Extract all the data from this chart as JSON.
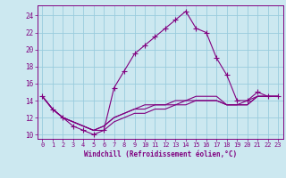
{
  "xlabel": "Windchill (Refroidissement éolien,°C)",
  "background_color": "#cce8f0",
  "grid_color": "#99ccdd",
  "line_color": "#800080",
  "x_ticks": [
    0,
    1,
    2,
    3,
    4,
    5,
    6,
    7,
    8,
    9,
    10,
    11,
    12,
    13,
    14,
    15,
    16,
    17,
    18,
    19,
    20,
    21,
    22,
    23
  ],
  "y_ticks": [
    10,
    12,
    14,
    16,
    18,
    20,
    22,
    24
  ],
  "xlim": [
    -0.5,
    23.5
  ],
  "ylim": [
    9.5,
    25.2
  ],
  "series": [
    {
      "x": [
        0,
        1,
        2,
        3,
        4,
        5,
        6,
        7,
        8,
        9,
        10,
        11,
        12,
        13,
        14,
        15,
        16,
        17,
        18,
        19,
        20,
        21,
        22,
        23
      ],
      "y": [
        14.5,
        13.0,
        12.0,
        11.0,
        10.5,
        10.0,
        10.5,
        15.5,
        17.5,
        19.5,
        20.5,
        21.5,
        22.5,
        23.5,
        24.5,
        22.5,
        22.0,
        19.0,
        17.0,
        14.0,
        14.0,
        15.0,
        14.5,
        14.5
      ],
      "marker": "+"
    },
    {
      "x": [
        0,
        1,
        2,
        3,
        4,
        5,
        6,
        7,
        8,
        9,
        10,
        11,
        12,
        13,
        14,
        15,
        16,
        17,
        18,
        19,
        20,
        21,
        22,
        23
      ],
      "y": [
        14.5,
        13.0,
        12.0,
        11.5,
        11.0,
        10.5,
        11.0,
        12.0,
        12.5,
        13.0,
        13.5,
        13.5,
        13.5,
        14.0,
        14.0,
        14.5,
        14.5,
        14.5,
        13.5,
        13.5,
        14.0,
        14.5,
        14.5,
        14.5
      ],
      "marker": null
    },
    {
      "x": [
        0,
        1,
        2,
        3,
        4,
        5,
        6,
        7,
        8,
        9,
        10,
        11,
        12,
        13,
        14,
        15,
        16,
        17,
        18,
        19,
        20,
        21,
        22,
        23
      ],
      "y": [
        14.5,
        13.0,
        12.0,
        11.5,
        11.0,
        10.5,
        11.0,
        12.0,
        12.5,
        13.0,
        13.0,
        13.5,
        13.5,
        13.5,
        14.0,
        14.0,
        14.0,
        14.0,
        13.5,
        13.5,
        13.5,
        14.5,
        14.5,
        14.5
      ],
      "marker": null
    },
    {
      "x": [
        0,
        1,
        2,
        3,
        4,
        5,
        6,
        7,
        8,
        9,
        10,
        11,
        12,
        13,
        14,
        15,
        16,
        17,
        18,
        19,
        20,
        21,
        22,
        23
      ],
      "y": [
        14.5,
        13.0,
        12.0,
        11.5,
        11.0,
        10.5,
        10.5,
        11.5,
        12.0,
        12.5,
        12.5,
        13.0,
        13.0,
        13.5,
        13.5,
        14.0,
        14.0,
        14.0,
        13.5,
        13.5,
        13.5,
        14.5,
        14.5,
        14.5
      ],
      "marker": null
    }
  ]
}
